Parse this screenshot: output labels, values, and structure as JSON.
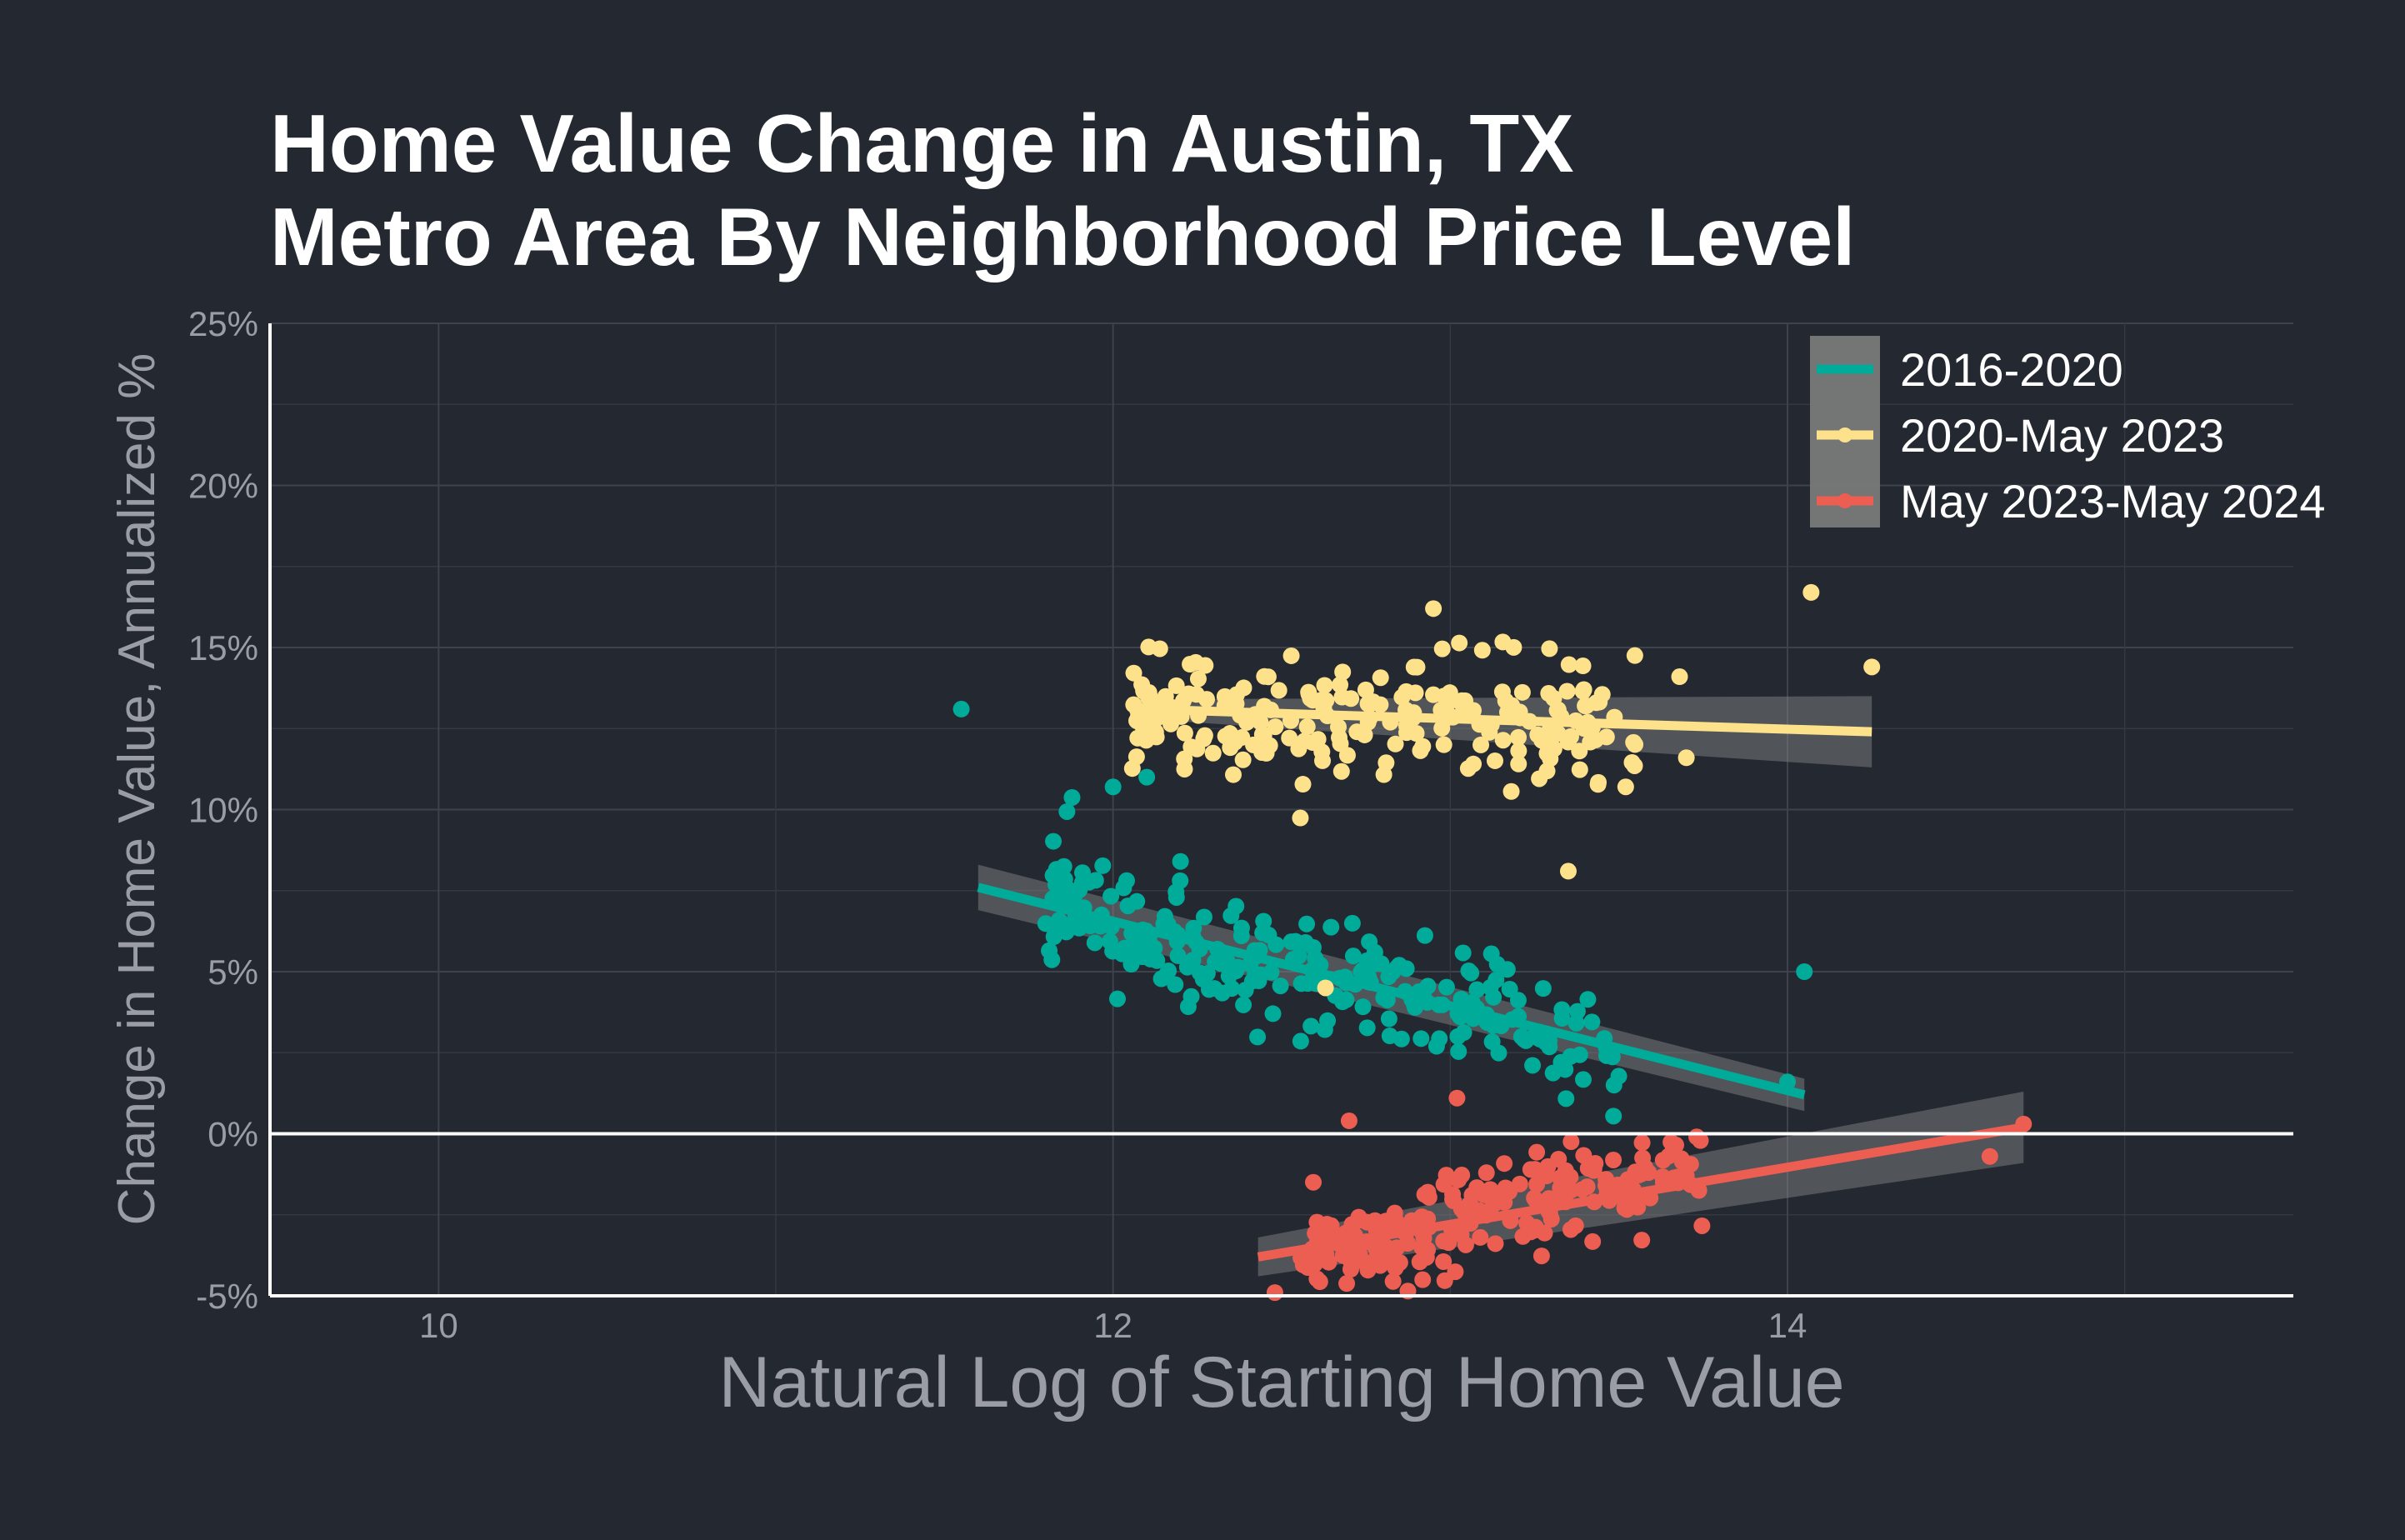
{
  "chart_data": {
    "type": "scatter",
    "title_lines": [
      "Home Value Change in Austin, TX",
      "Metro Area By Neighborhood Price Level"
    ],
    "xlabel": "Natural Log of Starting Home Value",
    "ylabel": "Change in Home Value, Annualized %",
    "xlim": [
      9.5,
      15.5
    ],
    "ylim": [
      -5,
      25
    ],
    "x_ticks": [
      10,
      12,
      14
    ],
    "x_tick_labels": [
      "10",
      "12",
      "14"
    ],
    "y_ticks": [
      -5,
      0,
      5,
      10,
      15,
      20,
      25
    ],
    "y_tick_labels": [
      "-5%",
      "0%",
      "5%",
      "10%",
      "15%",
      "20%",
      "25%"
    ],
    "grid": true,
    "zero_line": true,
    "legend_position": "top-right",
    "series": [
      {
        "name": "2016-2020",
        "color": "#00ab9a",
        "trend": {
          "x": [
            11.6,
            14.05
          ],
          "y": [
            7.6,
            1.2
          ],
          "band": [
            0.7,
            0.5
          ]
        },
        "outliers": [
          [
            11.55,
            13.1
          ],
          [
            14.05,
            5.0
          ],
          [
            14.0,
            1.6
          ],
          [
            12.0,
            10.7
          ],
          [
            12.1,
            11.0
          ],
          [
            12.2,
            8.4
          ]
        ],
        "cloud": {
          "n": 260,
          "xmin": 11.8,
          "xmax": 13.5,
          "slope": -2.8,
          "x0": 12.4,
          "y0": 5.5,
          "spread": 1.6,
          "seed": 11
        }
      },
      {
        "name": "2020-May 2023",
        "color": "#fde28b",
        "trend": {
          "x": [
            12.08,
            14.25
          ],
          "y": [
            13.1,
            12.4
          ],
          "band": [
            0.3,
            1.1
          ]
        },
        "outliers": [
          [
            14.07,
            16.7
          ],
          [
            14.25,
            14.4
          ],
          [
            12.95,
            16.2
          ],
          [
            13.7,
            11.6
          ],
          [
            13.35,
            8.1
          ],
          [
            12.63,
            4.5
          ],
          [
            13.68,
            14.1
          ]
        ],
        "cloud": {
          "n": 230,
          "xmin": 12.05,
          "xmax": 13.55,
          "slope": -0.3,
          "x0": 12.6,
          "y0": 13.0,
          "spread": 1.5,
          "seed": 23
        }
      },
      {
        "name": "May 2023-May 2024",
        "color": "#ec5e51",
        "trend": {
          "x": [
            12.43,
            14.7
          ],
          "y": [
            -3.8,
            0.2
          ],
          "band": [
            0.6,
            1.1
          ]
        },
        "outliers": [
          [
            14.7,
            0.3
          ],
          [
            14.6,
            -0.7
          ],
          [
            13.7,
            -1.3
          ],
          [
            12.48,
            -4.9
          ],
          [
            13.02,
            1.1
          ],
          [
            12.7,
            0.4
          ]
        ],
        "cloud": {
          "n": 230,
          "xmin": 12.55,
          "xmax": 13.75,
          "slope": 2.2,
          "x0": 12.9,
          "y0": -3.0,
          "spread": 1.2,
          "seed": 37
        }
      }
    ]
  }
}
